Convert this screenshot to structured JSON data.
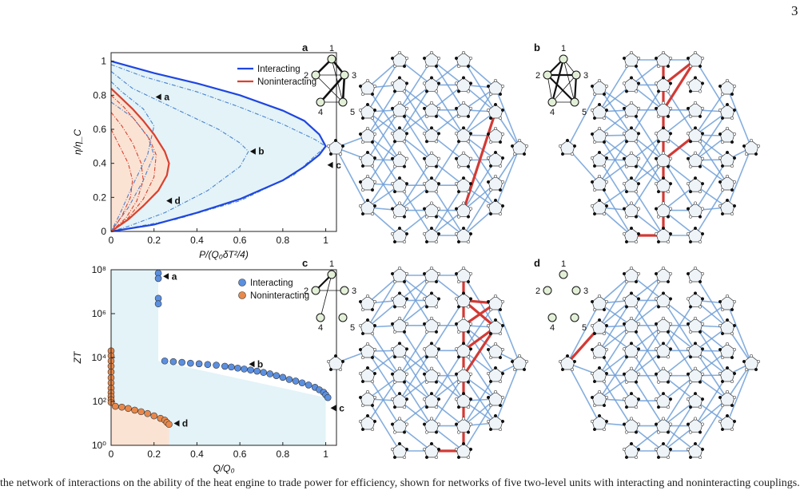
{
  "page_number": "3",
  "caption_fragment": "the network of interactions on the ability of the heat engine to trade power for efficiency, shown for networks of five two-level units with interacting and noninteracting couplings.",
  "colors": {
    "interacting": "#1f46e0",
    "noninteracting": "#d9412f",
    "interacting_fill": "#e3f3f8",
    "noninteracting_fill": "#fbe3d4",
    "dashed_blue": "#4a82cf",
    "dashed_red": "#d9412f",
    "interacting_marker": "#5b8fe0",
    "noninteracting_marker": "#e8884a",
    "network_edge": "#6f9fd8",
    "highlight_edge": "#d23a35",
    "node_fill": "#e3f0d8"
  },
  "chart_data": [
    {
      "type": "line",
      "xlabel": "P/(Q₀δT²/4)",
      "ylabel": "η/η_C",
      "xlim": [
        0,
        1.05
      ],
      "ylim": [
        0,
        1.05
      ],
      "xticks": [
        "0",
        "0.2",
        "0.4",
        "0.6",
        "0.8",
        "1"
      ],
      "yticks": [
        "0",
        "0.2",
        "0.4",
        "0.6",
        "0.8",
        "1"
      ],
      "legend": "top-right",
      "series": [
        {
          "name": "Interacting",
          "style": "solid",
          "x": [
            0,
            0.2,
            0.4,
            0.6,
            0.8,
            0.9,
            0.97,
            1.0,
            0.97,
            0.9,
            0.8,
            0.6,
            0.4,
            0.2,
            0
          ],
          "y": [
            1.0,
            0.93,
            0.87,
            0.8,
            0.71,
            0.65,
            0.57,
            0.5,
            0.45,
            0.38,
            0.3,
            0.19,
            0.11,
            0.04,
            0
          ]
        },
        {
          "name": "Noninteracting",
          "style": "solid",
          "x": [
            0,
            0.05,
            0.1,
            0.15,
            0.2,
            0.25,
            0.27,
            0.26,
            0.22,
            0.15,
            0.08,
            0
          ],
          "y": [
            0.84,
            0.78,
            0.72,
            0.65,
            0.57,
            0.47,
            0.4,
            0.33,
            0.24,
            0.15,
            0.07,
            0
          ]
        }
      ],
      "dashed_curves_blue": [
        {
          "x": [
            0,
            0.05,
            0.1,
            0.15,
            0.2,
            0.17,
            0.1,
            0.04,
            0
          ],
          "y": [
            0.88,
            0.82,
            0.77,
            0.72,
            0.62,
            0.45,
            0.27,
            0.1,
            0
          ]
        },
        {
          "x": [
            0,
            0.1,
            0.3,
            0.5,
            0.6,
            0.64,
            0.6,
            0.45,
            0.25,
            0.08,
            0
          ],
          "y": [
            0.94,
            0.84,
            0.72,
            0.6,
            0.52,
            0.47,
            0.38,
            0.24,
            0.11,
            0.03,
            0
          ]
        },
        {
          "x": [
            0,
            0.15,
            0.4,
            0.6,
            0.8,
            0.95,
            1.0
          ],
          "y": [
            0.98,
            0.91,
            0.82,
            0.73,
            0.63,
            0.54,
            0.5
          ]
        },
        {
          "x": [
            0,
            0.1,
            0.17,
            0.2,
            0.15,
            0.08,
            0
          ],
          "y": [
            0.76,
            0.67,
            0.56,
            0.45,
            0.3,
            0.14,
            0
          ]
        },
        {
          "x": [
            0,
            0.3,
            0.6,
            0.85,
            1.0
          ],
          "y": [
            0,
            0.07,
            0.18,
            0.33,
            0.5
          ]
        }
      ],
      "dashed_curves_red": [
        {
          "x": [
            0,
            0.06,
            0.12,
            0.18,
            0.21,
            0.2,
            0.15,
            0.08,
            0
          ],
          "y": [
            0.8,
            0.73,
            0.64,
            0.54,
            0.45,
            0.32,
            0.19,
            0.08,
            0
          ]
        },
        {
          "x": [
            0,
            0.05,
            0.1,
            0.14,
            0.15,
            0.12,
            0.07,
            0
          ],
          "y": [
            0.7,
            0.62,
            0.52,
            0.4,
            0.3,
            0.18,
            0.08,
            0
          ]
        },
        {
          "x": [
            0,
            0.04,
            0.08,
            0.1,
            0.09,
            0.05,
            0
          ],
          "y": [
            0.6,
            0.5,
            0.4,
            0.3,
            0.2,
            0.09,
            0
          ]
        }
      ],
      "annotations": [
        {
          "label": "a",
          "x": 0.2,
          "y": 0.79
        },
        {
          "label": "b",
          "x": 0.64,
          "y": 0.47
        },
        {
          "label": "c",
          "x": 1.0,
          "y": 0.39
        },
        {
          "label": "d",
          "x": 0.25,
          "y": 0.18
        }
      ]
    },
    {
      "type": "scatter",
      "xlabel": "Q/Q₀",
      "ylabel": "ZT",
      "ylog": true,
      "xlim": [
        0,
        1.05
      ],
      "ylim": [
        1,
        100000000
      ],
      "xticks": [
        "0",
        "0.2",
        "0.4",
        "0.6",
        "0.8",
        "1"
      ],
      "yticks": [
        "10⁰",
        "10²",
        "10⁴",
        "10⁶",
        "10⁸"
      ],
      "legend": "top-right",
      "series": [
        {
          "name": "Interacting",
          "x": [
            0.22,
            0.22,
            0.22,
            0.22,
            0.25,
            0.29,
            0.33,
            0.37,
            0.41,
            0.45,
            0.49,
            0.53,
            0.56,
            0.59,
            0.62,
            0.65,
            0.68,
            0.71,
            0.74,
            0.77,
            0.8,
            0.83,
            0.86,
            0.89,
            0.92,
            0.95,
            0.97,
            0.99,
            1.0,
            1.01
          ],
          "y": [
            70000000,
            40000000,
            5000000,
            2800000,
            7000,
            6500,
            6000,
            5500,
            5200,
            4800,
            4500,
            4000,
            3700,
            3300,
            3000,
            2700,
            2400,
            2100,
            1800,
            1500,
            1250,
            1000,
            850,
            700,
            560,
            440,
            340,
            260,
            200,
            150
          ]
        },
        {
          "name": "Noninteracting",
          "x": [
            0,
            0,
            0,
            0,
            0,
            0,
            0,
            0,
            0,
            0,
            0,
            0,
            0.02,
            0.05,
            0.08,
            0.11,
            0.14,
            0.17,
            0.2,
            0.23,
            0.25,
            0.26,
            0.27
          ],
          "y": [
            20000,
            12000,
            7000,
            4000,
            2200,
            1200,
            700,
            400,
            250,
            170,
            120,
            90,
            60,
            55,
            48,
            40,
            34,
            28,
            22,
            17,
            14,
            11,
            9
          ]
        }
      ],
      "annotations": [
        {
          "label": "a",
          "x": 0.22,
          "y": 50000000
        },
        {
          "label": "b",
          "x": 0.62,
          "y": 5000
        },
        {
          "label": "c",
          "x": 1.0,
          "y": 50
        },
        {
          "label": "d",
          "x": 0.27,
          "y": 10
        }
      ]
    }
  ],
  "panels": [
    {
      "id": "a",
      "label": "a",
      "nodes": [
        "1",
        "2",
        "3",
        "4",
        "5"
      ],
      "graph": "a"
    },
    {
      "id": "b",
      "label": "b",
      "nodes": [
        "1",
        "2",
        "3",
        "4",
        "5"
      ],
      "graph": "b"
    },
    {
      "id": "c",
      "label": "c",
      "nodes": [
        "1",
        "2",
        "3",
        "4",
        "5"
      ],
      "graph": "c"
    },
    {
      "id": "d",
      "label": "d",
      "nodes": [
        "1",
        "2",
        "3",
        "4",
        "5"
      ],
      "graph": "d"
    }
  ]
}
